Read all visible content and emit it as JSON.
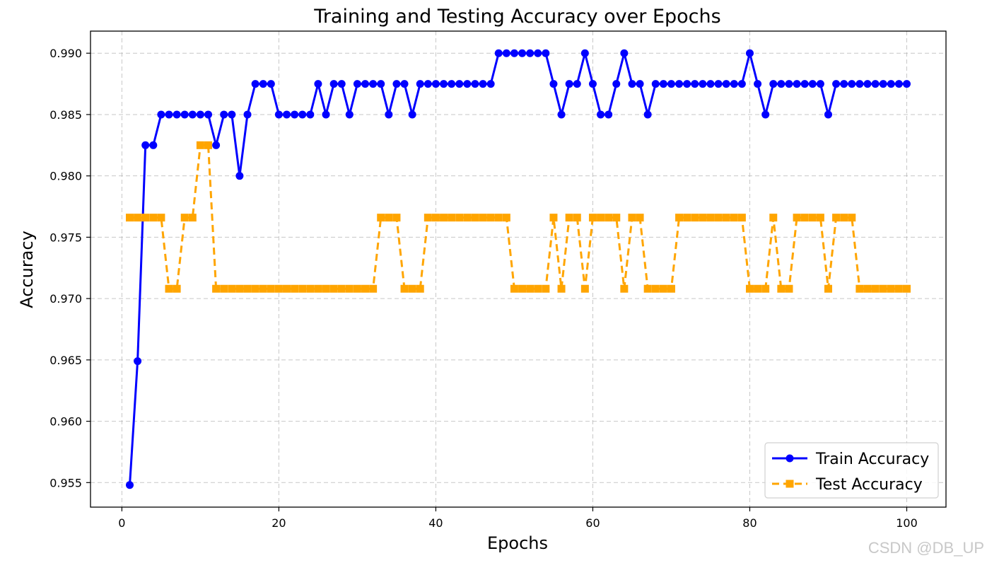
{
  "chart_data": {
    "type": "line",
    "title": "Training and Testing Accuracy over Epochs",
    "xlabel": "Epochs",
    "ylabel": "Accuracy",
    "xlim": [
      -4,
      105
    ],
    "ylim": [
      0.953,
      0.9918
    ],
    "xticks": [
      0,
      20,
      40,
      60,
      80,
      100
    ],
    "yticks": [
      0.955,
      0.96,
      0.965,
      0.97,
      0.975,
      0.98,
      0.985,
      0.99
    ],
    "ytick_labels": [
      "0.955",
      "0.960",
      "0.965",
      "0.970",
      "0.975",
      "0.980",
      "0.985",
      "0.990"
    ],
    "grid": true,
    "legend_position": "lower-right",
    "series": [
      {
        "name": "Train Accuracy",
        "color": "#0000ff",
        "style": "solid",
        "marker": "circle",
        "x": [
          1,
          2,
          3,
          4,
          5,
          6,
          7,
          8,
          9,
          10,
          11,
          12,
          13,
          14,
          15,
          16,
          17,
          18,
          19,
          20,
          21,
          22,
          23,
          24,
          25,
          26,
          27,
          28,
          29,
          30,
          31,
          32,
          33,
          34,
          35,
          36,
          37,
          38,
          39,
          40,
          41,
          42,
          43,
          44,
          45,
          46,
          47,
          48,
          49,
          50,
          51,
          52,
          53,
          54,
          55,
          56,
          57,
          58,
          59,
          60,
          61,
          62,
          63,
          64,
          65,
          66,
          67,
          68,
          69,
          70,
          71,
          72,
          73,
          74,
          75,
          76,
          77,
          78,
          79,
          80,
          81,
          82,
          83,
          84,
          85,
          86,
          87,
          88,
          89,
          90,
          91,
          92,
          93,
          94,
          95,
          96,
          97,
          98,
          99,
          100
        ],
        "values": [
          0.9548,
          0.9649,
          0.9825,
          0.9825,
          0.985,
          0.985,
          0.985,
          0.985,
          0.985,
          0.985,
          0.985,
          0.9825,
          0.985,
          0.985,
          0.98,
          0.985,
          0.9875,
          0.9875,
          0.9875,
          0.985,
          0.985,
          0.985,
          0.985,
          0.985,
          0.9875,
          0.985,
          0.9875,
          0.9875,
          0.985,
          0.9875,
          0.9875,
          0.9875,
          0.9875,
          0.985,
          0.9875,
          0.9875,
          0.985,
          0.9875,
          0.9875,
          0.9875,
          0.9875,
          0.9875,
          0.9875,
          0.9875,
          0.9875,
          0.9875,
          0.9875,
          0.99,
          0.99,
          0.99,
          0.99,
          0.99,
          0.99,
          0.99,
          0.9875,
          0.985,
          0.9875,
          0.9875,
          0.99,
          0.9875,
          0.985,
          0.985,
          0.9875,
          0.99,
          0.9875,
          0.9875,
          0.985,
          0.9875,
          0.9875,
          0.9875,
          0.9875,
          0.9875,
          0.9875,
          0.9875,
          0.9875,
          0.9875,
          0.9875,
          0.9875,
          0.9875,
          0.99,
          0.9875,
          0.985,
          0.9875,
          0.9875,
          0.9875,
          0.9875,
          0.9875,
          0.9875,
          0.9875,
          0.985,
          0.9875,
          0.9875,
          0.9875,
          0.9875,
          0.9875,
          0.9875,
          0.9875,
          0.9875,
          0.9875,
          0.9875
        ]
      },
      {
        "name": "Test Accuracy",
        "color": "#ffa500",
        "style": "dashed",
        "marker": "square",
        "x": [
          1,
          2,
          3,
          4,
          5,
          6,
          7,
          8,
          9,
          10,
          11,
          12,
          13,
          14,
          15,
          16,
          17,
          18,
          19,
          20,
          21,
          22,
          23,
          24,
          25,
          26,
          27,
          28,
          29,
          30,
          31,
          32,
          33,
          34,
          35,
          36,
          37,
          38,
          39,
          40,
          41,
          42,
          43,
          44,
          45,
          46,
          47,
          48,
          49,
          50,
          51,
          52,
          53,
          54,
          55,
          56,
          57,
          58,
          59,
          60,
          61,
          62,
          63,
          64,
          65,
          66,
          67,
          68,
          69,
          70,
          71,
          72,
          73,
          74,
          75,
          76,
          77,
          78,
          79,
          80,
          81,
          82,
          83,
          84,
          85,
          86,
          87,
          88,
          89,
          90,
          91,
          92,
          93,
          94,
          95,
          96,
          97,
          98,
          99,
          100
        ],
        "values": [
          0.9766,
          0.9766,
          0.9766,
          0.9766,
          0.9766,
          0.9708,
          0.9708,
          0.9766,
          0.9766,
          0.9825,
          0.9825,
          0.9708,
          0.9708,
          0.9708,
          0.9708,
          0.9708,
          0.9708,
          0.9708,
          0.9708,
          0.9708,
          0.9708,
          0.9708,
          0.9708,
          0.9708,
          0.9708,
          0.9708,
          0.9708,
          0.9708,
          0.9708,
          0.9708,
          0.9708,
          0.9708,
          0.9766,
          0.9766,
          0.9766,
          0.9708,
          0.9708,
          0.9708,
          0.9766,
          0.9766,
          0.9766,
          0.9766,
          0.9766,
          0.9766,
          0.9766,
          0.9766,
          0.9766,
          0.9766,
          0.9766,
          0.9708,
          0.9708,
          0.9708,
          0.9708,
          0.9708,
          0.9766,
          0.9708,
          0.9766,
          0.9766,
          0.9708,
          0.9766,
          0.9766,
          0.9766,
          0.9766,
          0.9708,
          0.9766,
          0.9766,
          0.9708,
          0.9708,
          0.9708,
          0.9708,
          0.9766,
          0.9766,
          0.9766,
          0.9766,
          0.9766,
          0.9766,
          0.9766,
          0.9766,
          0.9766,
          0.9708,
          0.9708,
          0.9708,
          0.9766,
          0.9708,
          0.9708,
          0.9766,
          0.9766,
          0.9766,
          0.9766,
          0.9708,
          0.9766,
          0.9766,
          0.9766,
          0.9708,
          0.9708,
          0.9708,
          0.9708,
          0.9708,
          0.9708,
          0.9708
        ]
      }
    ]
  },
  "watermark": "CSDN @DB_UP"
}
